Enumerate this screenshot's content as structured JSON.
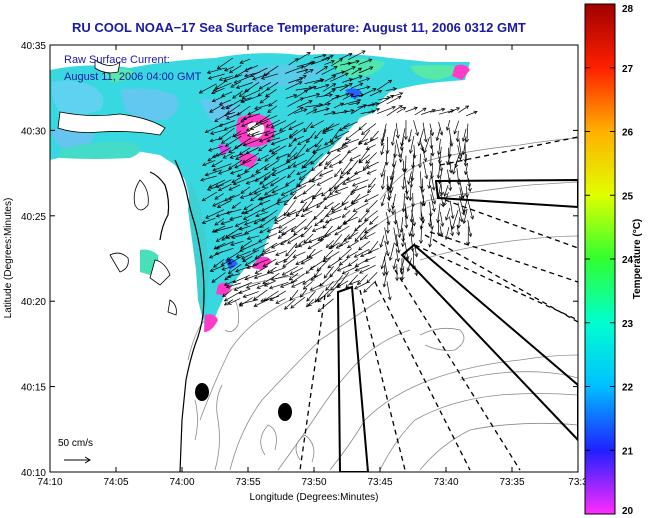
{
  "title": "RU COOL  NOAA−17  Sea Surface Temperature:  August 11, 2006 0312 GMT",
  "inset": {
    "line1": "Raw Surface Current:",
    "line2": "August 11, 2006 04:00 GMT"
  },
  "scale_label": "50 cm/s",
  "x_axis_label": "Longitude (Degrees:Minutes)",
  "y_axis_label": "Latitude (Degrees:Minutes)",
  "x_ticks": [
    "74:10",
    "74:05",
    "74:00",
    "73:55",
    "73:50",
    "73:45",
    "73:40",
    "73:35",
    "73:3"
  ],
  "y_ticks": [
    "40:35",
    "40:30",
    "40:25",
    "40:20",
    "40:15",
    "40:10"
  ],
  "colorbar": {
    "label": "Temperature (°C)",
    "ticks": [
      "28",
      "27",
      "26",
      "25",
      "24",
      "23",
      "22",
      "21",
      "20"
    ],
    "min": 20,
    "max": 28,
    "colors": [
      "#ff2cff",
      "#2020ff",
      "#00bfff",
      "#00ffd0",
      "#30ff30",
      "#e0ff00",
      "#ffb000",
      "#ff2000",
      "#a00000"
    ]
  },
  "colors": {
    "title": "#1a1aa6",
    "water_main": "#38d8e0",
    "water_cool": "#62c8f0",
    "water_warm": "#58e8a8",
    "hot_spot": "#ff3cc8"
  }
}
